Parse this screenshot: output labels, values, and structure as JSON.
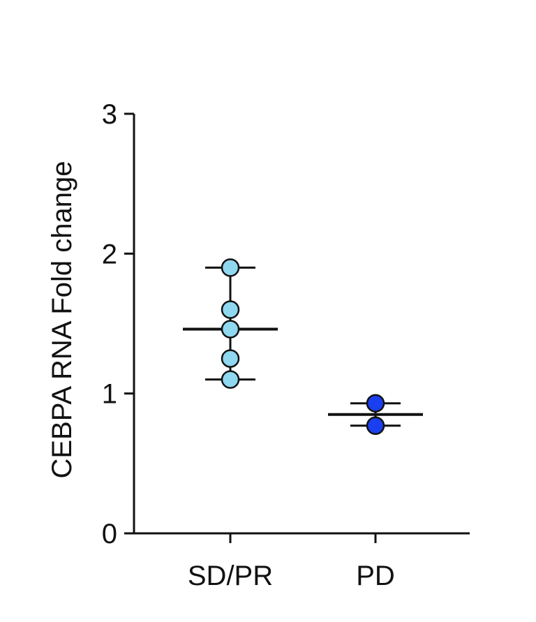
{
  "chart_data": {
    "type": "scatter",
    "title": "",
    "xlabel": "",
    "ylabel": "CEBPA RNA Fold change",
    "ylim": [
      0,
      3
    ],
    "yticks": [
      0,
      1,
      2,
      3
    ],
    "grid": false,
    "legend": "none",
    "categories": [
      "SD/PR",
      "PD"
    ],
    "series": [
      {
        "category": "SD/PR",
        "color": "#8fd8f0",
        "points": [
          1.9,
          1.6,
          1.46,
          1.25,
          1.1
        ],
        "center": 1.46,
        "error_low": 1.1,
        "error_high": 1.9
      },
      {
        "category": "PD",
        "color": "#1a3ff0",
        "points": [
          0.93,
          0.77
        ],
        "center": 0.85,
        "error_low": 0.77,
        "error_high": 0.93
      }
    ]
  }
}
